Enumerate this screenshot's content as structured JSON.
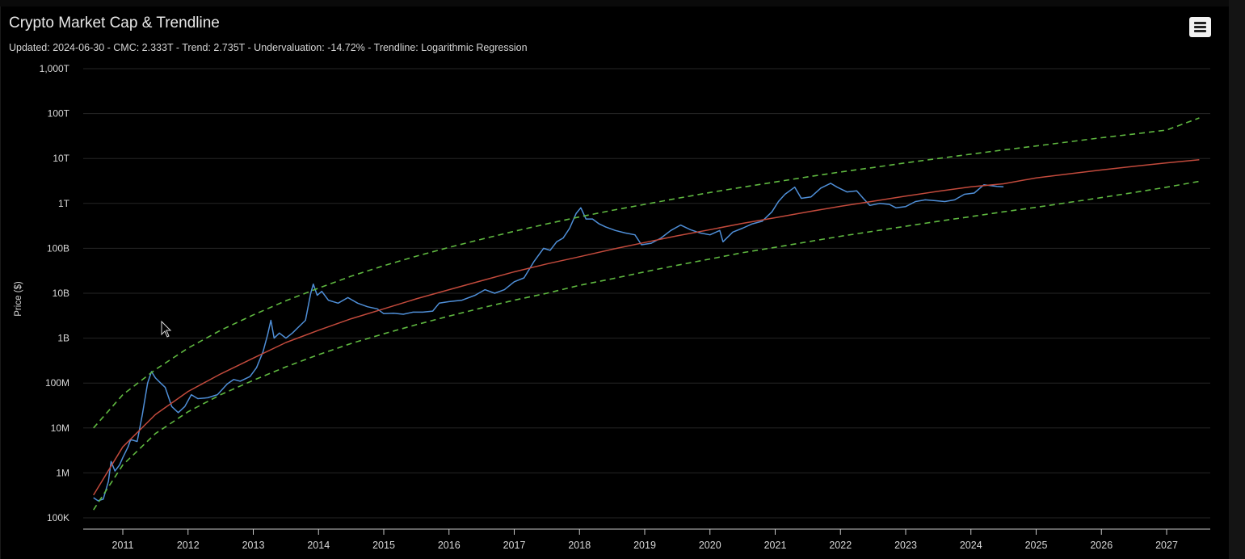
{
  "chart_data": {
    "type": "line",
    "title": "Crypto Market Cap & Trendline",
    "subtitle": "Updated: 2024-06-30 - CMC: 2.333T - Trend: 2.735T - Undervaluation: -14.72% - Trendline: Logarithmic Regression",
    "ylabel": "Price ($)",
    "xlabel": "",
    "yscale": "log",
    "ylim": [
      100000,
      1000000000000000
    ],
    "xlim": [
      2010.5,
      2027.8
    ],
    "grid": true,
    "legend": "none",
    "y_ticks": [
      {
        "value": 100000,
        "label": "100K"
      },
      {
        "value": 1000000,
        "label": "1M"
      },
      {
        "value": 10000000,
        "label": "10M"
      },
      {
        "value": 100000000,
        "label": "100M"
      },
      {
        "value": 1000000000,
        "label": "1B"
      },
      {
        "value": 10000000000,
        "label": "10B"
      },
      {
        "value": 100000000000,
        "label": "100B"
      },
      {
        "value": 1000000000000,
        "label": "1T"
      },
      {
        "value": 10000000000000,
        "label": "10T"
      },
      {
        "value": 100000000000000,
        "label": "100T"
      },
      {
        "value": 1000000000000000,
        "label": "1,000T"
      }
    ],
    "x_ticks": [
      {
        "value": 2011,
        "label": "2011"
      },
      {
        "value": 2012,
        "label": "2012"
      },
      {
        "value": 2013,
        "label": "2013"
      },
      {
        "value": 2014,
        "label": "2014"
      },
      {
        "value": 2015,
        "label": "2015"
      },
      {
        "value": 2016,
        "label": "2016"
      },
      {
        "value": 2017,
        "label": "2017"
      },
      {
        "value": 2018,
        "label": "2018"
      },
      {
        "value": 2019,
        "label": "2019"
      },
      {
        "value": 2020,
        "label": "2020"
      },
      {
        "value": 2021,
        "label": "2021"
      },
      {
        "value": 2022,
        "label": "2022"
      },
      {
        "value": 2023,
        "label": "2023"
      },
      {
        "value": 2024,
        "label": "2024"
      },
      {
        "value": 2025,
        "label": "2025"
      },
      {
        "value": 2026,
        "label": "2026"
      },
      {
        "value": 2027,
        "label": "2027"
      }
    ],
    "series": [
      {
        "color": "#4f8fd8",
        "style": "solid",
        "points": [
          [
            2010.55,
            280000
          ],
          [
            2010.62,
            240000
          ],
          [
            2010.7,
            260000
          ],
          [
            2010.78,
            650000
          ],
          [
            2010.82,
            1800000
          ],
          [
            2010.88,
            1100000
          ],
          [
            2010.95,
            1500000
          ],
          [
            2011.0,
            2200000
          ],
          [
            2011.08,
            3800000
          ],
          [
            2011.12,
            5500000
          ],
          [
            2011.22,
            5000000
          ],
          [
            2011.3,
            20000000
          ],
          [
            2011.38,
            100000000
          ],
          [
            2011.44,
            180000000
          ],
          [
            2011.5,
            130000000
          ],
          [
            2011.58,
            100000000
          ],
          [
            2011.65,
            80000000
          ],
          [
            2011.75,
            30000000
          ],
          [
            2011.85,
            22000000
          ],
          [
            2011.95,
            30000000
          ],
          [
            2012.05,
            55000000
          ],
          [
            2012.15,
            45000000
          ],
          [
            2012.3,
            47000000
          ],
          [
            2012.45,
            55000000
          ],
          [
            2012.6,
            95000000
          ],
          [
            2012.7,
            120000000
          ],
          [
            2012.8,
            110000000
          ],
          [
            2012.95,
            140000000
          ],
          [
            2013.05,
            220000000
          ],
          [
            2013.15,
            500000000
          ],
          [
            2013.22,
            1200000000
          ],
          [
            2013.27,
            2500000000
          ],
          [
            2013.32,
            1000000000
          ],
          [
            2013.4,
            1300000000
          ],
          [
            2013.5,
            1000000000
          ],
          [
            2013.6,
            1300000000
          ],
          [
            2013.7,
            1800000000
          ],
          [
            2013.8,
            2500000000
          ],
          [
            2013.88,
            10000000000
          ],
          [
            2013.92,
            16000000000
          ],
          [
            2013.98,
            9000000000
          ],
          [
            2014.05,
            11000000000
          ],
          [
            2014.15,
            7000000000
          ],
          [
            2014.3,
            6000000000
          ],
          [
            2014.45,
            8000000000
          ],
          [
            2014.6,
            6000000000
          ],
          [
            2014.75,
            5000000000
          ],
          [
            2014.9,
            4500000000
          ],
          [
            2015.0,
            3500000000
          ],
          [
            2015.15,
            3600000000
          ],
          [
            2015.3,
            3400000000
          ],
          [
            2015.45,
            3800000000
          ],
          [
            2015.6,
            3800000000
          ],
          [
            2015.75,
            4000000000
          ],
          [
            2015.85,
            6000000000
          ],
          [
            2016.0,
            6500000000
          ],
          [
            2016.2,
            7000000000
          ],
          [
            2016.4,
            9000000000
          ],
          [
            2016.55,
            12000000000
          ],
          [
            2016.7,
            10000000000
          ],
          [
            2016.85,
            12000000000
          ],
          [
            2017.0,
            18000000000
          ],
          [
            2017.15,
            22000000000
          ],
          [
            2017.3,
            50000000000
          ],
          [
            2017.45,
            100000000000
          ],
          [
            2017.55,
            90000000000
          ],
          [
            2017.65,
            140000000000
          ],
          [
            2017.75,
            170000000000
          ],
          [
            2017.85,
            280000000000
          ],
          [
            2017.95,
            600000000000
          ],
          [
            2018.02,
            800000000000
          ],
          [
            2018.1,
            450000000000
          ],
          [
            2018.2,
            450000000000
          ],
          [
            2018.3,
            350000000000
          ],
          [
            2018.4,
            300000000000
          ],
          [
            2018.55,
            250000000000
          ],
          [
            2018.7,
            220000000000
          ],
          [
            2018.85,
            200000000000
          ],
          [
            2018.95,
            120000000000
          ],
          [
            2019.1,
            130000000000
          ],
          [
            2019.25,
            170000000000
          ],
          [
            2019.4,
            250000000000
          ],
          [
            2019.55,
            330000000000
          ],
          [
            2019.7,
            260000000000
          ],
          [
            2019.85,
            220000000000
          ],
          [
            2020.0,
            200000000000
          ],
          [
            2020.15,
            250000000000
          ],
          [
            2020.2,
            140000000000
          ],
          [
            2020.35,
            230000000000
          ],
          [
            2020.5,
            280000000000
          ],
          [
            2020.65,
            350000000000
          ],
          [
            2020.8,
            400000000000
          ],
          [
            2020.95,
            650000000000
          ],
          [
            2021.05,
            1100000000000
          ],
          [
            2021.15,
            1600000000000
          ],
          [
            2021.3,
            2300000000000
          ],
          [
            2021.4,
            1300000000000
          ],
          [
            2021.55,
            1400000000000
          ],
          [
            2021.7,
            2200000000000
          ],
          [
            2021.85,
            2800000000000
          ],
          [
            2021.95,
            2300000000000
          ],
          [
            2022.1,
            1800000000000
          ],
          [
            2022.25,
            1900000000000
          ],
          [
            2022.35,
            1300000000000
          ],
          [
            2022.45,
            900000000000
          ],
          [
            2022.6,
            1000000000000
          ],
          [
            2022.75,
            950000000000
          ],
          [
            2022.85,
            800000000000
          ],
          [
            2023.0,
            850000000000
          ],
          [
            2023.15,
            1100000000000
          ],
          [
            2023.3,
            1200000000000
          ],
          [
            2023.45,
            1150000000000
          ],
          [
            2023.6,
            1100000000000
          ],
          [
            2023.75,
            1200000000000
          ],
          [
            2023.9,
            1600000000000
          ],
          [
            2024.05,
            1700000000000
          ],
          [
            2024.2,
            2600000000000
          ],
          [
            2024.3,
            2500000000000
          ],
          [
            2024.4,
            2400000000000
          ],
          [
            2024.5,
            2333000000000
          ]
        ]
      },
      {
        "color": "#c24a3c",
        "style": "solid",
        "points": [
          [
            2010.55,
            320000
          ],
          [
            2011.0,
            3800000
          ],
          [
            2011.5,
            20000000
          ],
          [
            2012.0,
            65000000
          ],
          [
            2012.5,
            160000000
          ],
          [
            2013.0,
            360000000
          ],
          [
            2013.5,
            800000000
          ],
          [
            2014.0,
            1500000000
          ],
          [
            2014.5,
            2700000000
          ],
          [
            2015.0,
            4500000000
          ],
          [
            2015.5,
            7500000000
          ],
          [
            2016.0,
            12000000000
          ],
          [
            2016.5,
            19000000000
          ],
          [
            2017.0,
            30000000000
          ],
          [
            2017.5,
            45000000000
          ],
          [
            2018.0,
            65000000000
          ],
          [
            2018.5,
            95000000000
          ],
          [
            2019.0,
            135000000000
          ],
          [
            2019.5,
            190000000000
          ],
          [
            2020.0,
            260000000000
          ],
          [
            2020.5,
            360000000000
          ],
          [
            2021.0,
            480000000000
          ],
          [
            2021.5,
            650000000000
          ],
          [
            2022.0,
            860000000000
          ],
          [
            2022.5,
            1120000000000
          ],
          [
            2023.0,
            1450000000000
          ],
          [
            2023.5,
            1860000000000
          ],
          [
            2024.0,
            2350000000000
          ],
          [
            2024.5,
            2735000000000
          ],
          [
            2025.0,
            3700000000000
          ],
          [
            2025.5,
            4550000000000
          ],
          [
            2026.0,
            5550000000000
          ],
          [
            2026.5,
            6700000000000
          ],
          [
            2027.0,
            8000000000000
          ],
          [
            2027.5,
            9400000000000
          ]
        ]
      },
      {
        "color": "#5fb840",
        "style": "dashed",
        "points": [
          [
            2010.55,
            10000000
          ],
          [
            2011.0,
            55000000
          ],
          [
            2011.5,
            200000000
          ],
          [
            2012.0,
            600000000
          ],
          [
            2012.5,
            1500000000
          ],
          [
            2013.0,
            3300000000
          ],
          [
            2013.5,
            6800000000
          ],
          [
            2014.0,
            13000000000
          ],
          [
            2014.5,
            24000000000
          ],
          [
            2015.0,
            41000000000
          ],
          [
            2015.5,
            67000000000
          ],
          [
            2016.0,
            105000000000
          ],
          [
            2016.5,
            160000000000
          ],
          [
            2017.0,
            240000000000
          ],
          [
            2017.5,
            350000000000
          ],
          [
            2018.0,
            500000000000
          ],
          [
            2018.5,
            700000000000
          ],
          [
            2019.0,
            950000000000
          ],
          [
            2019.5,
            1300000000000
          ],
          [
            2020.0,
            1750000000000
          ],
          [
            2020.5,
            2300000000000
          ],
          [
            2021.0,
            3000000000000
          ],
          [
            2021.5,
            3900000000000
          ],
          [
            2022.0,
            5000000000000
          ],
          [
            2022.5,
            6300000000000
          ],
          [
            2023.0,
            8000000000000
          ],
          [
            2023.5,
            10000000000000
          ],
          [
            2024.0,
            12500000000000
          ],
          [
            2024.5,
            15500000000000
          ],
          [
            2025.0,
            19000000000000
          ],
          [
            2025.5,
            23500000000000
          ],
          [
            2026.0,
            29000000000000
          ],
          [
            2026.5,
            35000000000000
          ],
          [
            2027.0,
            43000000000000
          ],
          [
            2027.5,
            80000000000000
          ]
        ]
      },
      {
        "color": "#5fb840",
        "style": "dashed",
        "points": [
          [
            2010.55,
            150000
          ],
          [
            2011.0,
            1500000
          ],
          [
            2011.5,
            7500000
          ],
          [
            2012.0,
            23000000
          ],
          [
            2012.5,
            55000000
          ],
          [
            2013.0,
            115000000
          ],
          [
            2013.5,
            230000000
          ],
          [
            2014.0,
            430000000
          ],
          [
            2014.5,
            760000000
          ],
          [
            2015.0,
            1250000000
          ],
          [
            2015.5,
            2000000000
          ],
          [
            2016.0,
            3100000000
          ],
          [
            2016.5,
            4700000000
          ],
          [
            2017.0,
            7000000000
          ],
          [
            2017.5,
            10000000000
          ],
          [
            2018.0,
            15000000000
          ],
          [
            2018.5,
            21000000000
          ],
          [
            2019.0,
            30000000000
          ],
          [
            2019.5,
            42000000000
          ],
          [
            2020.0,
            58000000000
          ],
          [
            2020.5,
            80000000000
          ],
          [
            2021.0,
            105000000000
          ],
          [
            2021.5,
            140000000000
          ],
          [
            2022.0,
            185000000000
          ],
          [
            2022.5,
            240000000000
          ],
          [
            2023.0,
            310000000000
          ],
          [
            2023.5,
            400000000000
          ],
          [
            2024.0,
            510000000000
          ],
          [
            2024.5,
            650000000000
          ],
          [
            2025.0,
            820000000000
          ],
          [
            2025.5,
            1050000000000
          ],
          [
            2026.0,
            1350000000000
          ],
          [
            2026.5,
            1750000000000
          ],
          [
            2027.0,
            2300000000000
          ],
          [
            2027.5,
            3100000000000
          ]
        ]
      }
    ]
  }
}
